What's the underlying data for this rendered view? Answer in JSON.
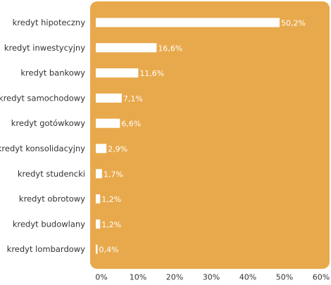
{
  "chart_data": {
    "type": "bar",
    "orientation": "horizontal",
    "categories": [
      "kredyt hipoteczny",
      "kredyt inwestycyjny",
      "kredyt bankowy",
      "kredyt samochodowy",
      "kredyt gotówkowy",
      "kredyt konsolidacyjny",
      "kredyt studencki",
      "kredyt obrotowy",
      "kredyt budowlany",
      "kredyt lombardowy"
    ],
    "values": [
      50.2,
      16.6,
      11.6,
      7.1,
      6.6,
      2.9,
      1.7,
      1.2,
      1.2,
      0.4
    ],
    "value_labels": [
      "50,2%",
      "16,6%",
      "11,6%",
      "7,1%",
      "6,6%",
      "2,9%",
      "1,7%",
      "1,2%",
      "1,2%",
      "0,4%"
    ],
    "xlim": [
      0,
      60
    ],
    "x_ticks": [
      0,
      10,
      20,
      30,
      40,
      50,
      60
    ],
    "x_tick_labels": [
      "0%",
      "10%",
      "20%",
      "30%",
      "40%",
      "50%",
      "60%"
    ],
    "grid": false,
    "title": "",
    "xlabel": "",
    "ylabel": ""
  },
  "colors": {
    "panel": "#e8a94c",
    "bar": "#ffffff",
    "value_label": "#ffffff",
    "text": "#333333"
  }
}
